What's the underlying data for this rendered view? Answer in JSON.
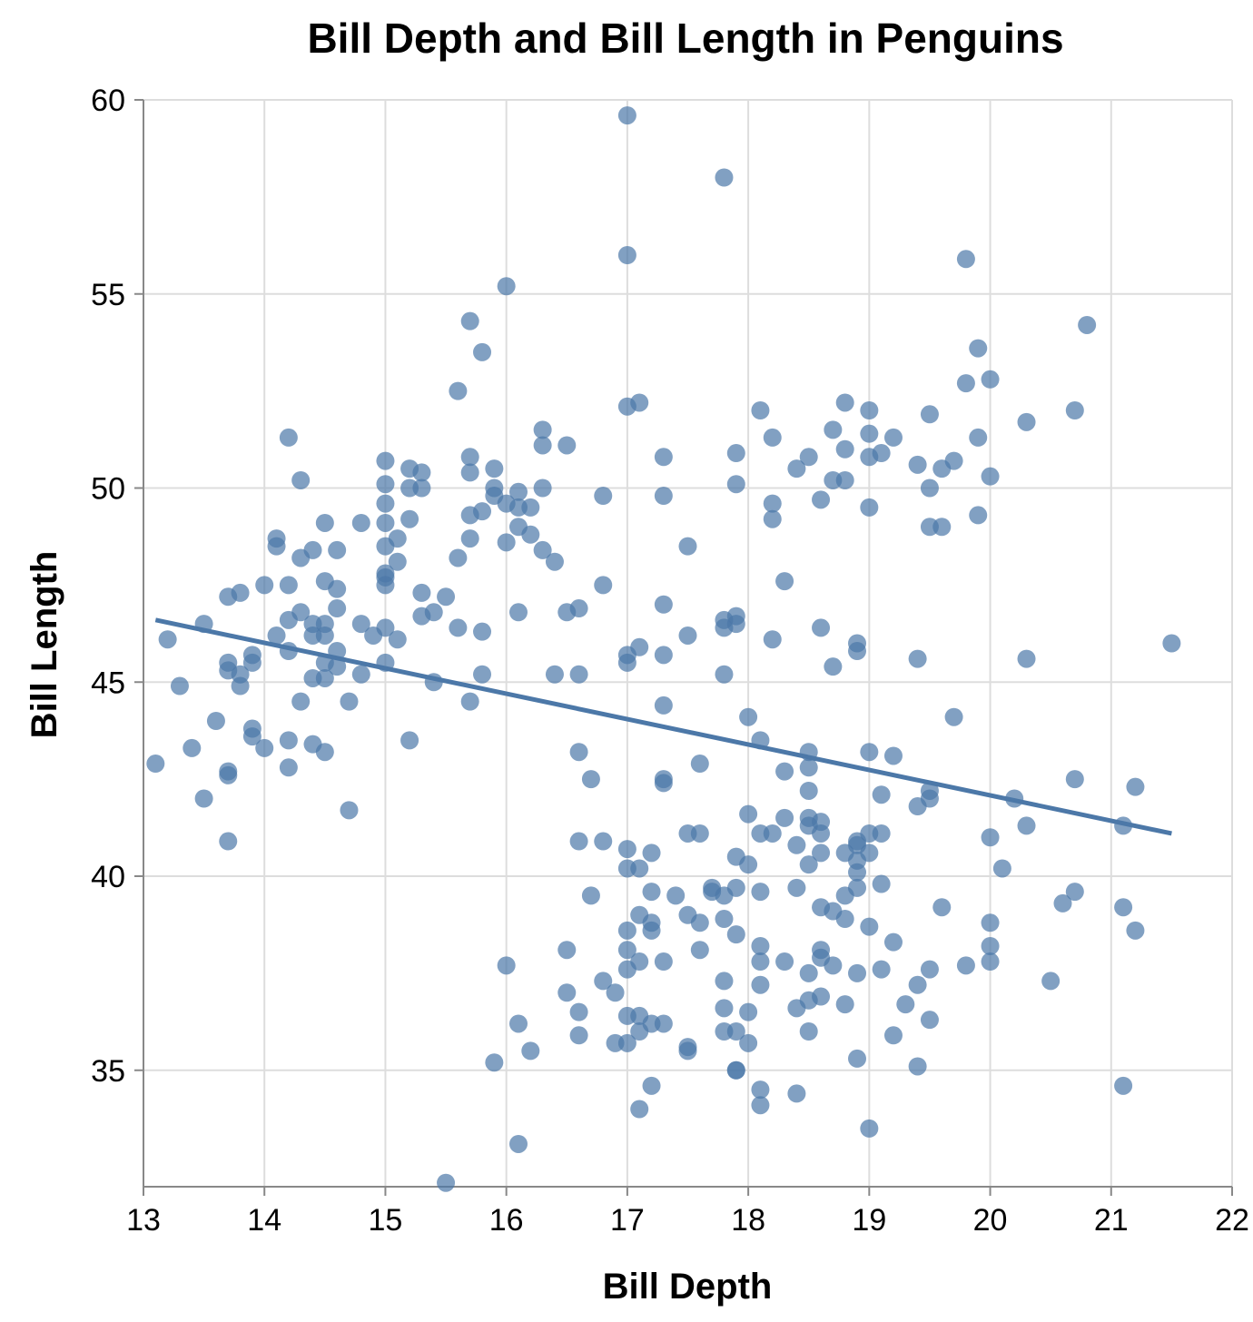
{
  "chart_data": {
    "type": "scatter",
    "title": "Bill Depth and Bill Length in Penguins",
    "xlabel": "Bill Depth",
    "ylabel": "Bill Length",
    "xlim": [
      13,
      22
    ],
    "ylim": [
      32,
      60
    ],
    "xticks": [
      13,
      14,
      15,
      16,
      17,
      18,
      19,
      20,
      21,
      22
    ],
    "yticks": [
      35,
      40,
      45,
      50,
      55,
      60
    ],
    "grid": true,
    "point_color": "#4c78a8",
    "line_color": "#4c78a8",
    "regression_line": {
      "x": [
        13.1,
        21.5
      ],
      "y": [
        46.6,
        41.1
      ]
    },
    "points": [
      [
        17.0,
        59.6
      ],
      [
        17.8,
        58.0
      ],
      [
        17.0,
        56.0
      ],
      [
        19.8,
        55.9
      ],
      [
        16.0,
        55.2
      ],
      [
        15.7,
        54.3
      ],
      [
        20.8,
        54.2
      ],
      [
        15.8,
        53.5
      ],
      [
        19.9,
        53.6
      ],
      [
        19.8,
        52.7
      ],
      [
        20.0,
        52.8
      ],
      [
        15.6,
        52.5
      ],
      [
        17.0,
        52.1
      ],
      [
        17.1,
        52.2
      ],
      [
        18.1,
        52.0
      ],
      [
        18.8,
        52.2
      ],
      [
        19.0,
        52.0
      ],
      [
        20.7,
        52.0
      ],
      [
        20.3,
        51.7
      ],
      [
        14.2,
        51.3
      ],
      [
        16.3,
        51.5
      ],
      [
        16.3,
        51.1
      ],
      [
        16.5,
        51.1
      ],
      [
        18.2,
        51.3
      ],
      [
        18.7,
        51.5
      ],
      [
        19.0,
        51.4
      ],
      [
        19.2,
        51.3
      ],
      [
        19.5,
        51.9
      ],
      [
        19.9,
        51.3
      ],
      [
        15.0,
        50.7
      ],
      [
        15.2,
        50.5
      ],
      [
        15.3,
        50.4
      ],
      [
        15.7,
        50.8
      ],
      [
        15.9,
        50.5
      ],
      [
        17.3,
        50.8
      ],
      [
        17.9,
        50.9
      ],
      [
        18.5,
        50.8
      ],
      [
        18.8,
        51.0
      ],
      [
        19.0,
        50.8
      ],
      [
        19.1,
        50.9
      ],
      [
        18.4,
        50.5
      ],
      [
        14.3,
        50.2
      ],
      [
        15.0,
        50.1
      ],
      [
        15.2,
        50.0
      ],
      [
        15.3,
        50.0
      ],
      [
        15.7,
        50.4
      ],
      [
        15.9,
        50.0
      ],
      [
        16.1,
        49.9
      ],
      [
        16.3,
        50.0
      ],
      [
        17.9,
        50.1
      ],
      [
        18.7,
        50.2
      ],
      [
        18.8,
        50.2
      ],
      [
        19.4,
        50.6
      ],
      [
        19.6,
        50.5
      ],
      [
        19.7,
        50.7
      ],
      [
        19.5,
        50.0
      ],
      [
        20.0,
        50.3
      ],
      [
        15.9,
        49.8
      ],
      [
        16.8,
        49.8
      ],
      [
        17.3,
        49.8
      ],
      [
        15.0,
        49.6
      ],
      [
        16.0,
        49.6
      ],
      [
        16.1,
        49.5
      ],
      [
        16.2,
        49.5
      ],
      [
        18.2,
        49.6
      ],
      [
        18.6,
        49.7
      ],
      [
        19.0,
        49.5
      ],
      [
        18.2,
        49.2
      ],
      [
        19.9,
        49.3
      ],
      [
        14.5,
        49.1
      ],
      [
        14.8,
        49.1
      ],
      [
        15.0,
        49.1
      ],
      [
        15.2,
        49.2
      ],
      [
        15.7,
        49.3
      ],
      [
        15.8,
        49.4
      ],
      [
        16.1,
        49.0
      ],
      [
        19.5,
        49.0
      ],
      [
        19.6,
        49.0
      ],
      [
        16.2,
        48.8
      ],
      [
        14.1,
        48.7
      ],
      [
        14.1,
        48.5
      ],
      [
        15.1,
        48.7
      ],
      [
        15.7,
        48.7
      ],
      [
        16.0,
        48.6
      ],
      [
        17.5,
        48.5
      ],
      [
        14.4,
        48.4
      ],
      [
        14.6,
        48.4
      ],
      [
        15.0,
        48.5
      ],
      [
        16.3,
        48.4
      ],
      [
        14.3,
        48.2
      ],
      [
        15.6,
        48.2
      ],
      [
        15.1,
        48.1
      ],
      [
        16.4,
        48.1
      ],
      [
        15.0,
        47.8
      ],
      [
        15.0,
        47.7
      ],
      [
        15.0,
        47.5
      ],
      [
        14.5,
        47.6
      ],
      [
        14.0,
        47.5
      ],
      [
        14.2,
        47.5
      ],
      [
        16.8,
        47.5
      ],
      [
        18.3,
        47.6
      ],
      [
        14.6,
        47.4
      ],
      [
        13.7,
        47.2
      ],
      [
        13.8,
        47.3
      ],
      [
        15.3,
        47.3
      ],
      [
        15.5,
        47.2
      ],
      [
        17.3,
        47.0
      ],
      [
        14.6,
        46.9
      ],
      [
        14.3,
        46.8
      ],
      [
        15.3,
        46.7
      ],
      [
        15.4,
        46.8
      ],
      [
        16.1,
        46.8
      ],
      [
        16.5,
        46.8
      ],
      [
        16.6,
        46.9
      ],
      [
        14.2,
        46.6
      ],
      [
        14.4,
        46.5
      ],
      [
        14.5,
        46.5
      ],
      [
        13.5,
        46.5
      ],
      [
        14.8,
        46.5
      ],
      [
        17.8,
        46.6
      ],
      [
        17.9,
        46.7
      ],
      [
        17.9,
        46.5
      ],
      [
        17.8,
        46.4
      ],
      [
        15.6,
        46.4
      ],
      [
        15.8,
        46.3
      ],
      [
        15.0,
        46.4
      ],
      [
        18.6,
        46.4
      ],
      [
        14.1,
        46.2
      ],
      [
        14.4,
        46.2
      ],
      [
        14.5,
        46.2
      ],
      [
        14.9,
        46.2
      ],
      [
        13.2,
        46.1
      ],
      [
        15.1,
        46.1
      ],
      [
        17.5,
        46.2
      ],
      [
        18.2,
        46.1
      ],
      [
        18.9,
        46.0
      ],
      [
        21.5,
        46.0
      ],
      [
        14.6,
        45.8
      ],
      [
        14.2,
        45.8
      ],
      [
        18.9,
        45.8
      ],
      [
        13.9,
        45.7
      ],
      [
        17.0,
        45.7
      ],
      [
        17.1,
        45.9
      ],
      [
        17.3,
        45.7
      ],
      [
        19.4,
        45.6
      ],
      [
        20.3,
        45.6
      ],
      [
        13.7,
        45.5
      ],
      [
        13.9,
        45.5
      ],
      [
        14.5,
        45.5
      ],
      [
        15.0,
        45.5
      ],
      [
        17.0,
        45.5
      ],
      [
        14.6,
        45.4
      ],
      [
        18.7,
        45.4
      ],
      [
        13.7,
        45.3
      ],
      [
        13.8,
        45.2
      ],
      [
        14.8,
        45.2
      ],
      [
        15.8,
        45.2
      ],
      [
        16.4,
        45.2
      ],
      [
        16.6,
        45.2
      ],
      [
        17.8,
        45.2
      ],
      [
        14.4,
        45.1
      ],
      [
        14.5,
        45.1
      ],
      [
        13.3,
        44.9
      ],
      [
        13.8,
        44.9
      ],
      [
        15.4,
        45.0
      ],
      [
        14.3,
        44.5
      ],
      [
        14.7,
        44.5
      ],
      [
        15.7,
        44.5
      ],
      [
        17.3,
        44.4
      ],
      [
        13.6,
        44.0
      ],
      [
        18.0,
        44.1
      ],
      [
        19.7,
        44.1
      ],
      [
        13.9,
        43.8
      ],
      [
        13.9,
        43.6
      ],
      [
        14.2,
        43.5
      ],
      [
        15.2,
        43.5
      ],
      [
        18.1,
        43.5
      ],
      [
        13.4,
        43.3
      ],
      [
        14.0,
        43.3
      ],
      [
        14.4,
        43.4
      ],
      [
        14.5,
        43.2
      ],
      [
        16.6,
        43.2
      ],
      [
        18.5,
        43.2
      ],
      [
        19.0,
        43.2
      ],
      [
        19.2,
        43.1
      ],
      [
        13.1,
        42.9
      ],
      [
        17.6,
        42.9
      ],
      [
        14.2,
        42.8
      ],
      [
        18.5,
        42.8
      ],
      [
        13.7,
        42.7
      ],
      [
        13.7,
        42.6
      ],
      [
        18.3,
        42.7
      ],
      [
        16.7,
        42.5
      ],
      [
        17.3,
        42.5
      ],
      [
        17.3,
        42.4
      ],
      [
        20.7,
        42.5
      ],
      [
        21.2,
        42.3
      ],
      [
        18.5,
        42.2
      ],
      [
        19.1,
        42.1
      ],
      [
        19.5,
        42.2
      ],
      [
        13.5,
        42.0
      ],
      [
        19.5,
        42.0
      ],
      [
        20.2,
        42.0
      ],
      [
        19.4,
        41.8
      ],
      [
        14.7,
        41.7
      ],
      [
        18.0,
        41.6
      ],
      [
        18.3,
        41.5
      ],
      [
        18.5,
        41.5
      ],
      [
        18.6,
        41.4
      ],
      [
        18.5,
        41.3
      ],
      [
        20.3,
        41.3
      ],
      [
        21.1,
        41.3
      ],
      [
        17.5,
        41.1
      ],
      [
        17.6,
        41.1
      ],
      [
        18.1,
        41.1
      ],
      [
        18.2,
        41.1
      ],
      [
        18.6,
        41.1
      ],
      [
        19.0,
        41.1
      ],
      [
        19.1,
        41.1
      ],
      [
        13.7,
        40.9
      ],
      [
        16.6,
        40.9
      ],
      [
        16.8,
        40.9
      ],
      [
        18.9,
        40.9
      ],
      [
        20.0,
        41.0
      ],
      [
        18.4,
        40.8
      ],
      [
        18.9,
        40.8
      ],
      [
        17.0,
        40.7
      ],
      [
        17.2,
        40.6
      ],
      [
        18.6,
        40.6
      ],
      [
        18.8,
        40.6
      ],
      [
        19.0,
        40.6
      ],
      [
        17.9,
        40.5
      ],
      [
        18.9,
        40.4
      ],
      [
        18.0,
        40.3
      ],
      [
        18.5,
        40.3
      ],
      [
        17.0,
        40.2
      ],
      [
        17.1,
        40.2
      ],
      [
        20.1,
        40.2
      ],
      [
        18.9,
        40.1
      ],
      [
        19.1,
        39.8
      ],
      [
        17.7,
        39.7
      ],
      [
        17.7,
        39.6
      ],
      [
        17.9,
        39.7
      ],
      [
        18.1,
        39.6
      ],
      [
        18.4,
        39.7
      ],
      [
        18.9,
        39.7
      ],
      [
        17.2,
        39.6
      ],
      [
        20.7,
        39.6
      ],
      [
        16.7,
        39.5
      ],
      [
        17.4,
        39.5
      ],
      [
        17.8,
        39.5
      ],
      [
        18.8,
        39.5
      ],
      [
        20.6,
        39.3
      ],
      [
        19.6,
        39.2
      ],
      [
        18.6,
        39.2
      ],
      [
        18.7,
        39.1
      ],
      [
        21.1,
        39.2
      ],
      [
        17.1,
        39.0
      ],
      [
        17.5,
        39.0
      ],
      [
        18.8,
        38.9
      ],
      [
        17.2,
        38.8
      ],
      [
        17.6,
        38.8
      ],
      [
        17.8,
        38.9
      ],
      [
        20.0,
        38.8
      ],
      [
        19.0,
        38.7
      ],
      [
        17.0,
        38.6
      ],
      [
        17.2,
        38.6
      ],
      [
        21.2,
        38.6
      ],
      [
        17.9,
        38.5
      ],
      [
        19.2,
        38.3
      ],
      [
        18.1,
        38.2
      ],
      [
        20.0,
        38.2
      ],
      [
        16.5,
        38.1
      ],
      [
        17.0,
        38.1
      ],
      [
        17.6,
        38.1
      ],
      [
        18.6,
        38.1
      ],
      [
        18.6,
        37.9
      ],
      [
        18.1,
        37.8
      ],
      [
        18.3,
        37.8
      ],
      [
        17.1,
        37.8
      ],
      [
        17.3,
        37.8
      ],
      [
        20.0,
        37.8
      ],
      [
        16.0,
        37.7
      ],
      [
        18.7,
        37.7
      ],
      [
        19.8,
        37.7
      ],
      [
        17.0,
        37.6
      ],
      [
        19.1,
        37.6
      ],
      [
        19.5,
        37.6
      ],
      [
        18.5,
        37.5
      ],
      [
        18.9,
        37.5
      ],
      [
        16.8,
        37.3
      ],
      [
        17.8,
        37.3
      ],
      [
        20.5,
        37.3
      ],
      [
        18.1,
        37.2
      ],
      [
        19.4,
        37.2
      ],
      [
        16.5,
        37.0
      ],
      [
        16.9,
        37.0
      ],
      [
        18.6,
        36.9
      ],
      [
        18.5,
        36.8
      ],
      [
        19.3,
        36.7
      ],
      [
        18.8,
        36.7
      ],
      [
        17.8,
        36.6
      ],
      [
        18.4,
        36.6
      ],
      [
        16.6,
        36.5
      ],
      [
        18.0,
        36.5
      ],
      [
        17.0,
        36.4
      ],
      [
        17.1,
        36.4
      ],
      [
        17.2,
        36.2
      ],
      [
        17.3,
        36.2
      ],
      [
        16.1,
        36.2
      ],
      [
        19.5,
        36.3
      ],
      [
        17.1,
        36.0
      ],
      [
        17.8,
        36.0
      ],
      [
        17.9,
        36.0
      ],
      [
        18.5,
        36.0
      ],
      [
        19.2,
        35.9
      ],
      [
        16.6,
        35.9
      ],
      [
        16.9,
        35.7
      ],
      [
        17.0,
        35.7
      ],
      [
        18.0,
        35.7
      ],
      [
        16.2,
        35.5
      ],
      [
        17.5,
        35.6
      ],
      [
        17.5,
        35.5
      ],
      [
        15.9,
        35.2
      ],
      [
        18.9,
        35.3
      ],
      [
        19.4,
        35.1
      ],
      [
        17.9,
        35.0
      ],
      [
        17.9,
        35.0
      ],
      [
        17.2,
        34.6
      ],
      [
        21.1,
        34.6
      ],
      [
        18.1,
        34.5
      ],
      [
        18.4,
        34.4
      ],
      [
        18.1,
        34.1
      ],
      [
        17.1,
        34.0
      ],
      [
        19.0,
        33.5
      ],
      [
        16.1,
        33.1
      ],
      [
        15.5,
        32.1
      ]
    ]
  }
}
